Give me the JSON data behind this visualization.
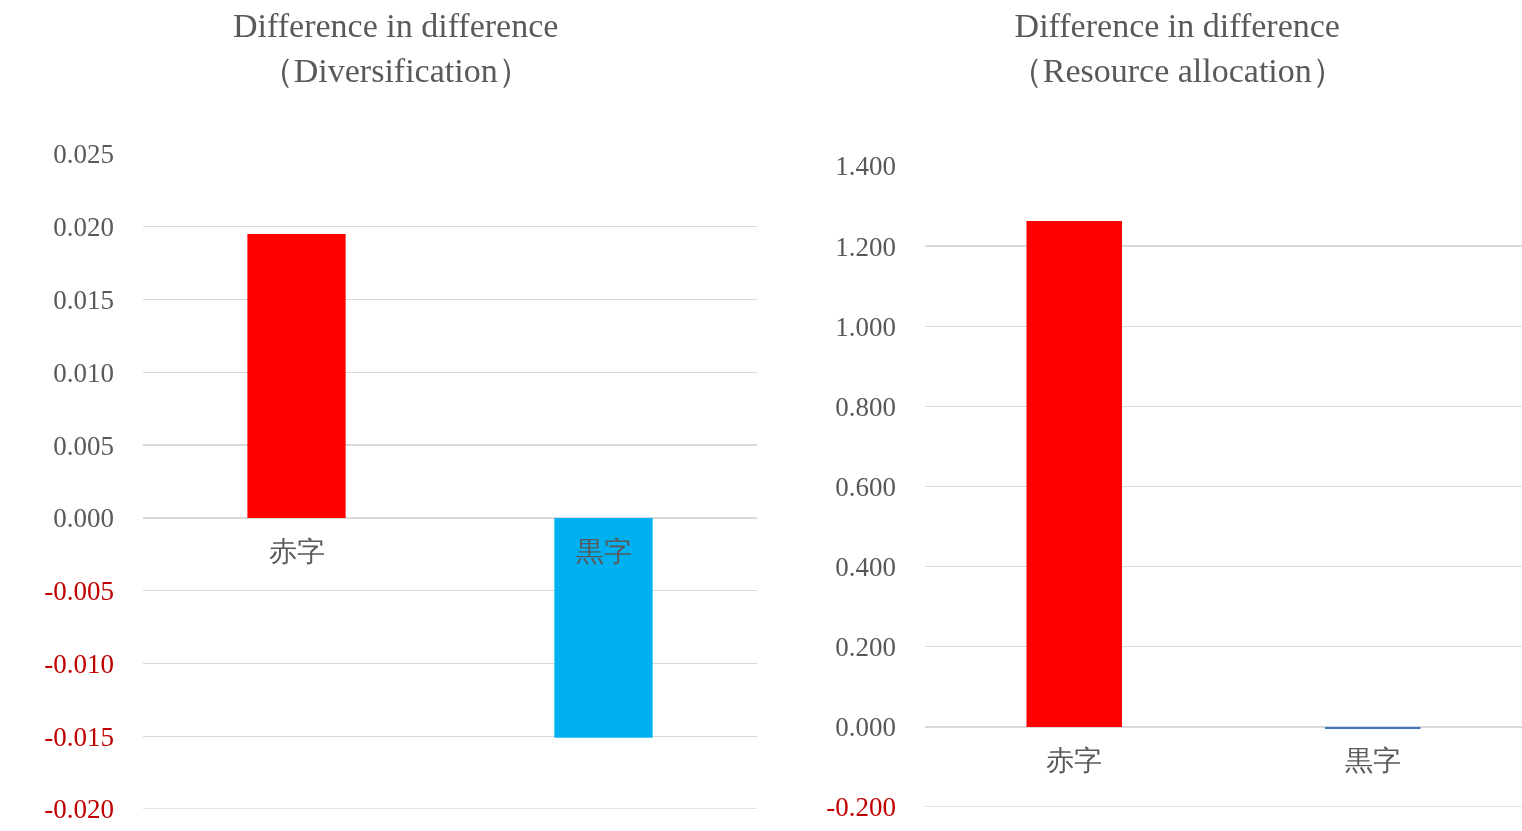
{
  "chart_data": [
    {
      "type": "bar",
      "title": "Difference in difference\n（Diversification）",
      "categories": [
        "赤字",
        "黒字"
      ],
      "values": [
        0.0195,
        -0.0151
      ],
      "colors": [
        "#ff0000",
        "#00b0f0"
      ],
      "ylim": [
        -0.02,
        0.025
      ],
      "yticks": [
        {
          "value": -0.02,
          "label": "-0.020"
        },
        {
          "value": -0.015,
          "label": "-0.015"
        },
        {
          "value": -0.01,
          "label": "-0.010"
        },
        {
          "value": -0.005,
          "label": "-0.005"
        },
        {
          "value": 0,
          "label": "0.000"
        },
        {
          "value": 0.005,
          "label": "0.005"
        },
        {
          "value": 0.01,
          "label": "0.010"
        },
        {
          "value": 0.015,
          "label": "0.015"
        },
        {
          "value": 0.02,
          "label": "0.020"
        },
        {
          "value": 0.025,
          "label": "0.025"
        }
      ],
      "grid": "y"
    },
    {
      "type": "bar",
      "title": "Difference in difference\n（Resource allocation）",
      "categories": [
        "赤字",
        "黒字"
      ],
      "values": [
        1.263,
        -0.005
      ],
      "colors": [
        "#ff0000",
        "#4472c4"
      ],
      "ylim": [
        -0.2,
        1.4
      ],
      "yticks": [
        {
          "value": -0.2,
          "label": "-0.200"
        },
        {
          "value": 0,
          "label": "0.000"
        },
        {
          "value": 0.2,
          "label": "0.200"
        },
        {
          "value": 0.4,
          "label": "0.400"
        },
        {
          "value": 0.6,
          "label": "0.600"
        },
        {
          "value": 0.8,
          "label": "0.800"
        },
        {
          "value": 1,
          "label": "1.000"
        },
        {
          "value": 1.2,
          "label": "1.200"
        },
        {
          "value": 1.4,
          "label": "1.400"
        }
      ],
      "grid": "y"
    }
  ]
}
